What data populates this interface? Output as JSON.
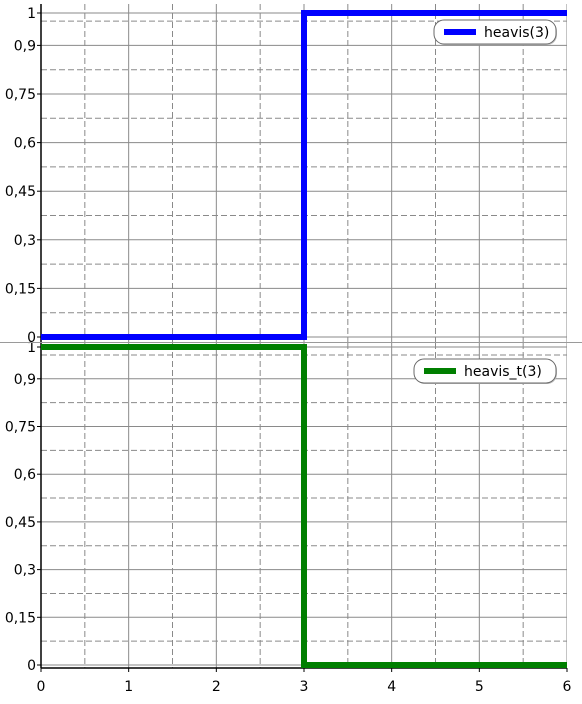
{
  "chart_data": [
    {
      "type": "line",
      "step": true,
      "series": [
        {
          "name": "heavis(3)",
          "color": "#0000ff",
          "x": [
            0,
            3,
            3,
            6
          ],
          "y": [
            0,
            0,
            1,
            1
          ]
        }
      ],
      "xlim": [
        0,
        6
      ],
      "ylim": [
        0,
        1
      ],
      "y_ticks": [
        0,
        0.15,
        0.3,
        0.45,
        0.6,
        0.75,
        0.9,
        1
      ],
      "y_tick_labels": [
        "0",
        "0,15",
        "0,3",
        "0,45",
        "0,6",
        "0,75",
        "0,9",
        "1"
      ],
      "grid": true,
      "legend_position": "top-right"
    },
    {
      "type": "line",
      "step": true,
      "series": [
        {
          "name": "heavis_t(3)",
          "color": "#007f00",
          "x": [
            0,
            3,
            3,
            6
          ],
          "y": [
            1,
            1,
            0,
            0
          ]
        }
      ],
      "xlim": [
        0,
        6
      ],
      "ylim": [
        0,
        1
      ],
      "x_ticks": [
        0,
        1,
        2,
        3,
        4,
        5,
        6
      ],
      "x_tick_labels": [
        "0",
        "1",
        "2",
        "3",
        "4",
        "5",
        "6"
      ],
      "y_ticks": [
        0,
        0.15,
        0.3,
        0.45,
        0.6,
        0.75,
        0.9,
        1
      ],
      "y_tick_labels": [
        "0",
        "0,15",
        "0,3",
        "0,45",
        "0,6",
        "0,75",
        "0,9",
        "1"
      ],
      "grid": true,
      "legend_position": "top-right"
    }
  ]
}
